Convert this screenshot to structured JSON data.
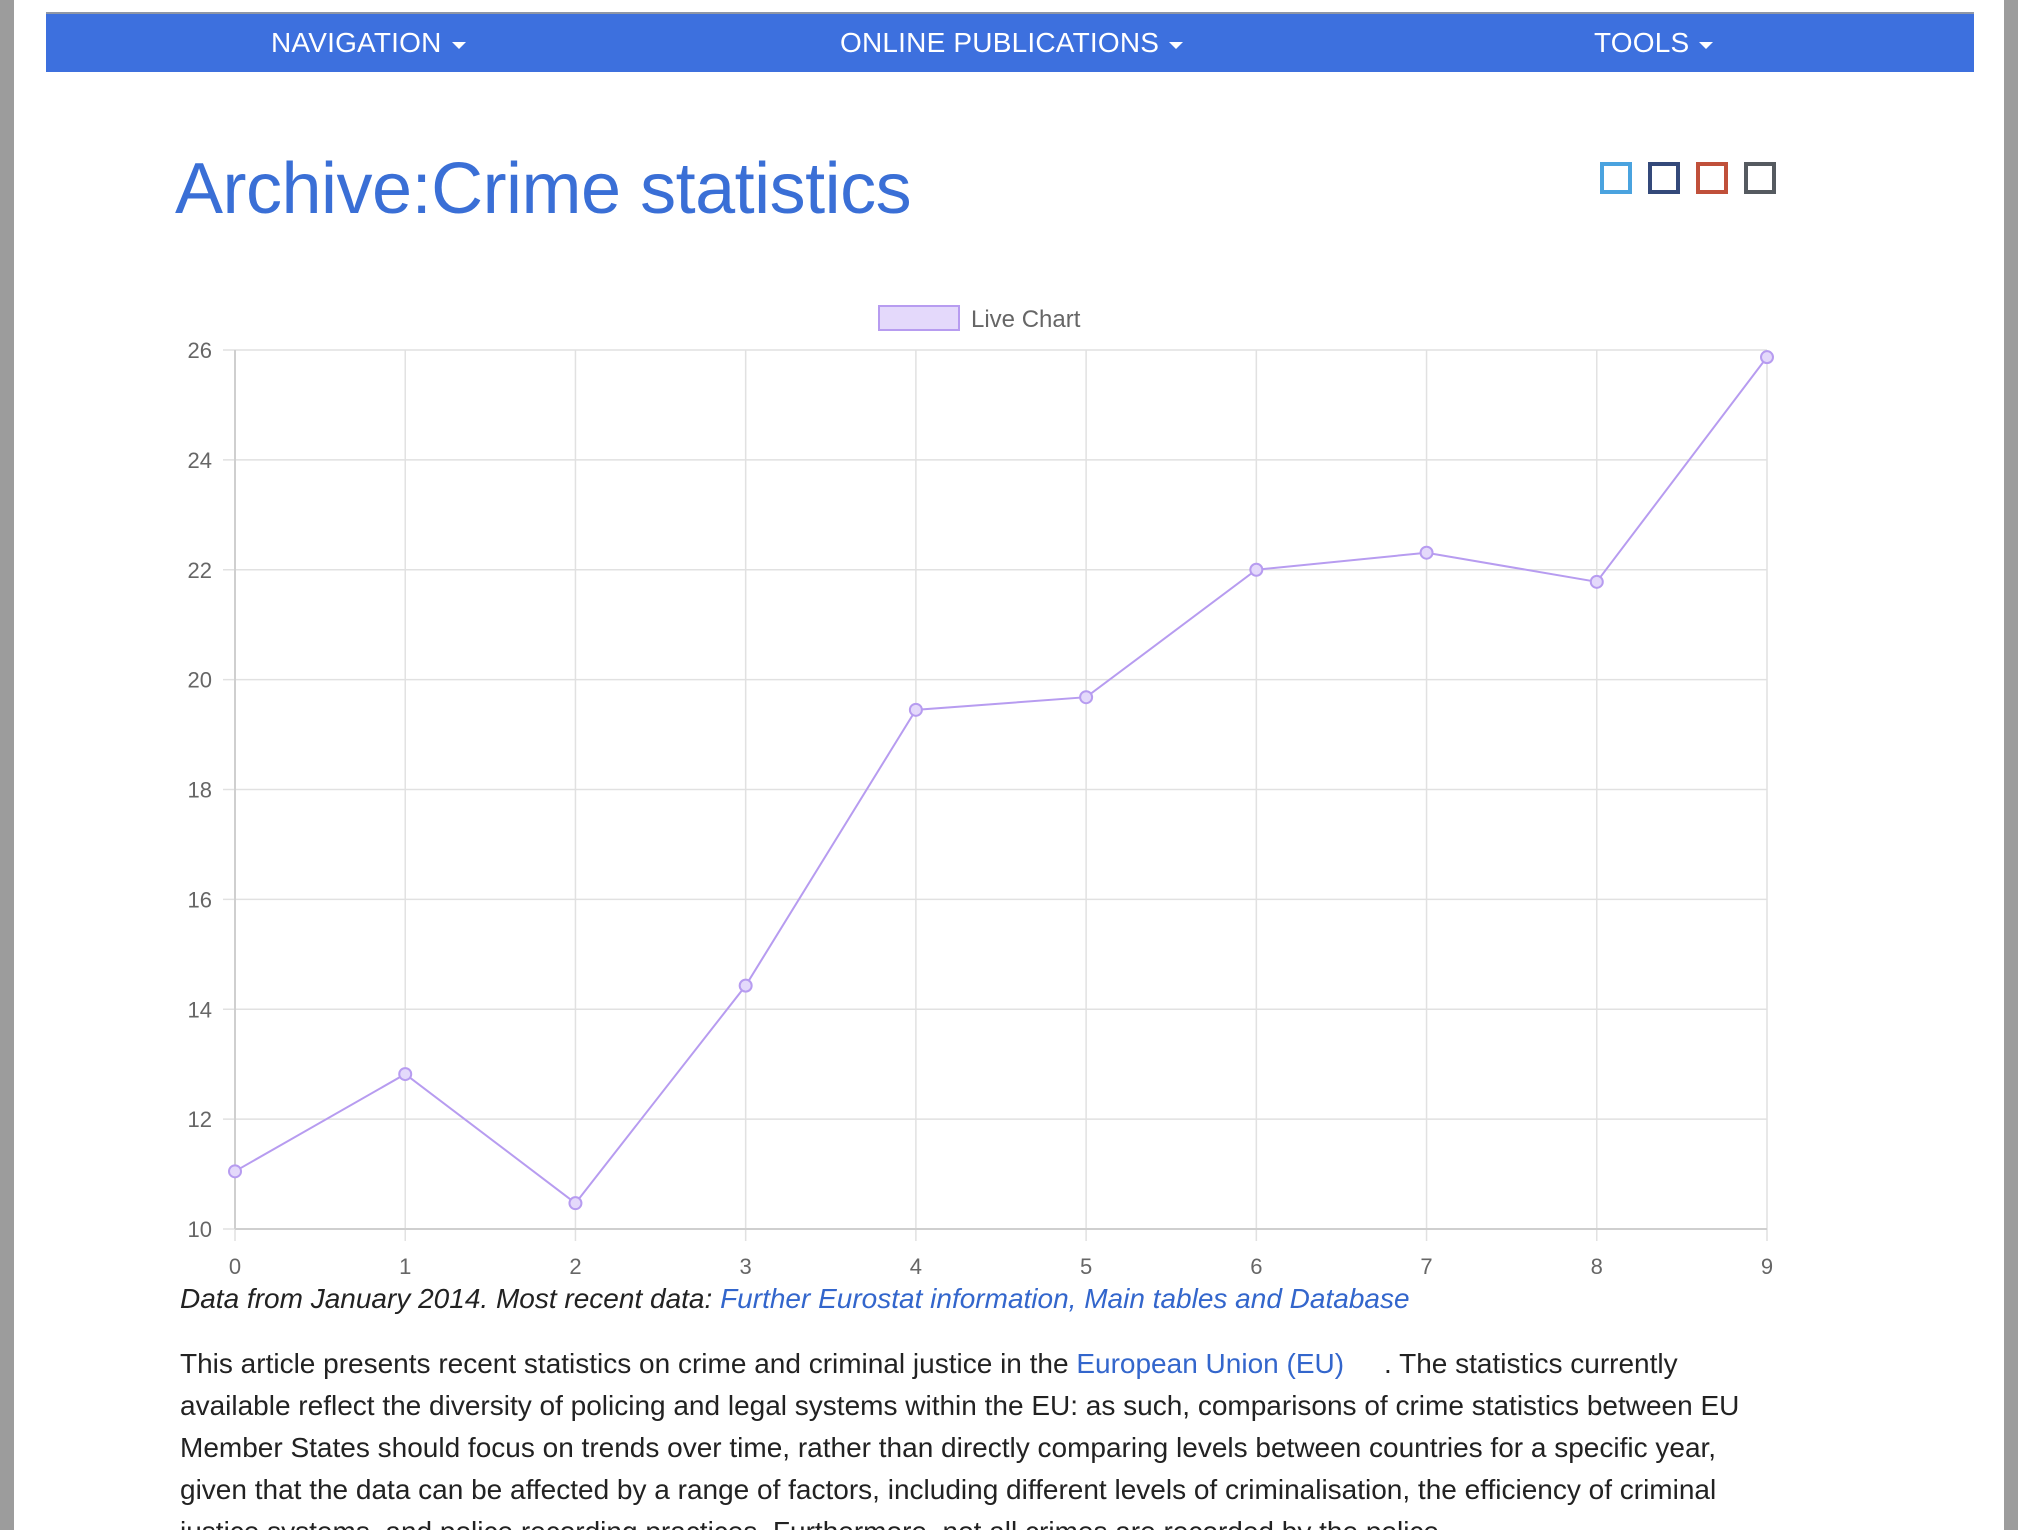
{
  "nav": {
    "items": [
      {
        "label": "NAVIGATION"
      },
      {
        "label": "ONLINE PUBLICATIONS"
      },
      {
        "label": "TOOLS"
      }
    ],
    "background_color": "#3d70de"
  },
  "page": {
    "title": "Archive:Crime statistics"
  },
  "skin_selector": {
    "colors": [
      "#4aa3df",
      "#34497a",
      "#c0503a",
      "#555a60"
    ]
  },
  "chart_data": {
    "type": "line",
    "legend": {
      "label": "Live Chart",
      "position": "top-center"
    },
    "x": [
      0,
      1,
      2,
      3,
      4,
      5,
      6,
      7,
      8,
      9
    ],
    "series": [
      {
        "name": "Live Chart",
        "values": [
          11.05,
          12.82,
          10.47,
          14.43,
          19.45,
          19.68,
          22.0,
          22.31,
          21.78,
          25.87
        ]
      }
    ],
    "ylim": [
      10,
      26
    ],
    "yticks": [
      10,
      12,
      14,
      16,
      18,
      20,
      22,
      24,
      26
    ],
    "grid": true,
    "line_color": "#b79cf0"
  },
  "caption": {
    "prefix": "Data from January 2014. Most recent data: ",
    "link": "Further Eurostat information, Main tables and Database"
  },
  "article": {
    "intro_before_link": "This article presents recent statistics on crime and criminal justice in the ",
    "eu_link": "European Union (EU)",
    "intro_after_link": ". The statistics currently available reflect the diversity of policing and legal systems within the EU: as such, comparisons of crime statistics between EU Member States should focus on trends over time, rather than directly comparing levels between countries for a specific year, given that the data can be affected by a range of factors, including different levels of criminalisation, the efficiency of criminal justice systems, and police recording practices. Furthermore, not all crimes are recorded by the police."
  }
}
